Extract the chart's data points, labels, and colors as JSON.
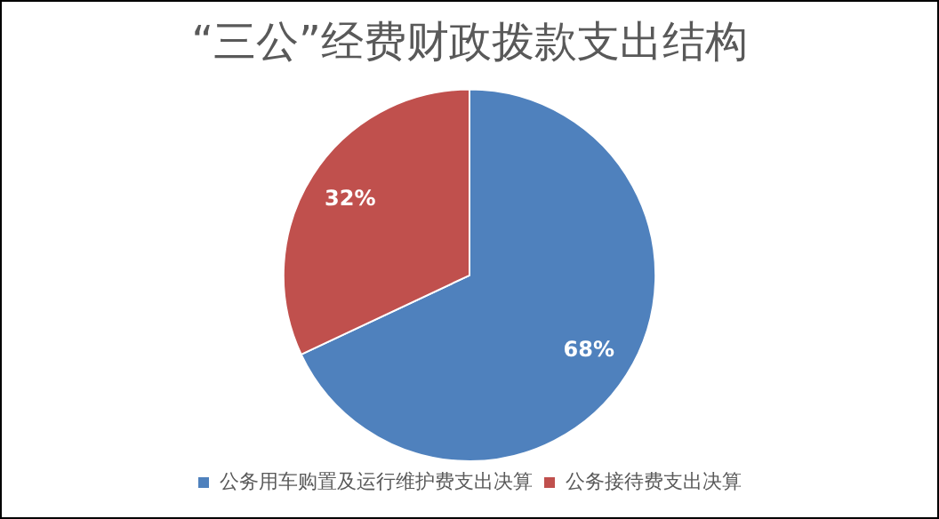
{
  "chart_data": {
    "type": "pie",
    "title": "“三公”经费财政拨款支出结构",
    "categories": [
      "公务用车购置及运行维护费支出决算",
      "公务接待费支出决算"
    ],
    "values": [
      68,
      32
    ],
    "colors": [
      "#4f81bd",
      "#c0504d"
    ],
    "value_labels": [
      "68%",
      "32%"
    ],
    "legend": "bottom"
  }
}
